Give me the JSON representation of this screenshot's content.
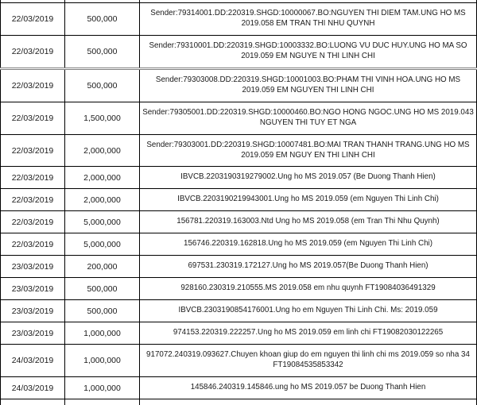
{
  "table": {
    "rows": [
      {
        "date": "22/03/2019",
        "amount": "500,000",
        "description": "Sender:79314001.DD:220319.SHGD:10000067.BO:NGUYEN THI DIEM TAM.UNG HO MS 2019.058 EM TRAN THI NHU QUYNH"
      },
      {
        "date": "22/03/2019",
        "amount": "500,000",
        "description": "Sender:79310001.DD:220319.SHGD:10003332.BO:LUONG VU DUC HUY.UNG HO MA SO 2019.059 EM NGUYE N THI LINH CHI",
        "thick_border_below": true
      },
      {
        "date": "22/03/2019",
        "amount": "500,000",
        "description": "Sender:79303008.DD:220319.SHGD:10001003.BO:PHAM THI VINH HOA.UNG HO MS 2019.059 EM NGUYEN THI LINH CHI"
      },
      {
        "date": "22/03/2019",
        "amount": "1,500,000",
        "description": "Sender:79305001.DD:220319.SHGD:10000460.BO:NGO HONG NGOC.UNG HO MS 2019.043 NGUYEN THI TUY ET NGA"
      },
      {
        "date": "22/03/2019",
        "amount": "2,000,000",
        "description": "Sender:79303001.DD:220319.SHGD:10007481.BO:MAI TRAN THANH TRANG.UNG HO MS 2019.059 EM NGUY EN THI LINH CHI"
      },
      {
        "date": "22/03/2019",
        "amount": "2,000,000",
        "description": "IBVCB.2203190319279002.Ung ho MS 2019.057 (Be Duong Thanh Hien)"
      },
      {
        "date": "22/03/2019",
        "amount": "2,000,000",
        "description": "IBVCB.2203190219943001.Ung ho MS 2019.059 (em Nguyen Thi Linh Chi)"
      },
      {
        "date": "22/03/2019",
        "amount": "5,000,000",
        "description": "156781.220319.163003.Ntd Ung ho MS 2019.058 (em Tran Thi Nhu Quynh)"
      },
      {
        "date": "22/03/2019",
        "amount": "5,000,000",
        "description": "156746.220319.162818.Ung ho MS 2019.059 (em Nguyen Thi Linh Chi)"
      },
      {
        "date": "23/03/2019",
        "amount": "200,000",
        "description": "697531.230319.172127.Ung ho MS 2019.057(Be Duong Thanh Hien)"
      },
      {
        "date": "23/03/2019",
        "amount": "500,000",
        "description": "928160.230319.210555.MS 2019.058 em nhu quynh FT19084036491329"
      },
      {
        "date": "23/03/2019",
        "amount": "500,000",
        "description": "IBVCB.2303190854176001.Ung ho em Nguyen Thi Linh Chi. Ms: 2019.059"
      },
      {
        "date": "23/03/2019",
        "amount": "1,000,000",
        "description": "974153.220319.222257.Ung ho MS 2019.059 em linh chi FT19082030122265"
      },
      {
        "date": "24/03/2019",
        "amount": "1,000,000",
        "description": "917072.240319.093627.Chuyen khoan giup do em nguyen thi linh chi ms 2019.059 so nha 34 FT19084535853342"
      },
      {
        "date": "24/03/2019",
        "amount": "1,000,000",
        "description": "145846.240319.145846.ung ho MS 2019.057 be Duong Thanh Hien"
      }
    ]
  },
  "colors": {
    "border": "#000000",
    "section_divider": "#808080",
    "text": "#1a1a1a"
  }
}
